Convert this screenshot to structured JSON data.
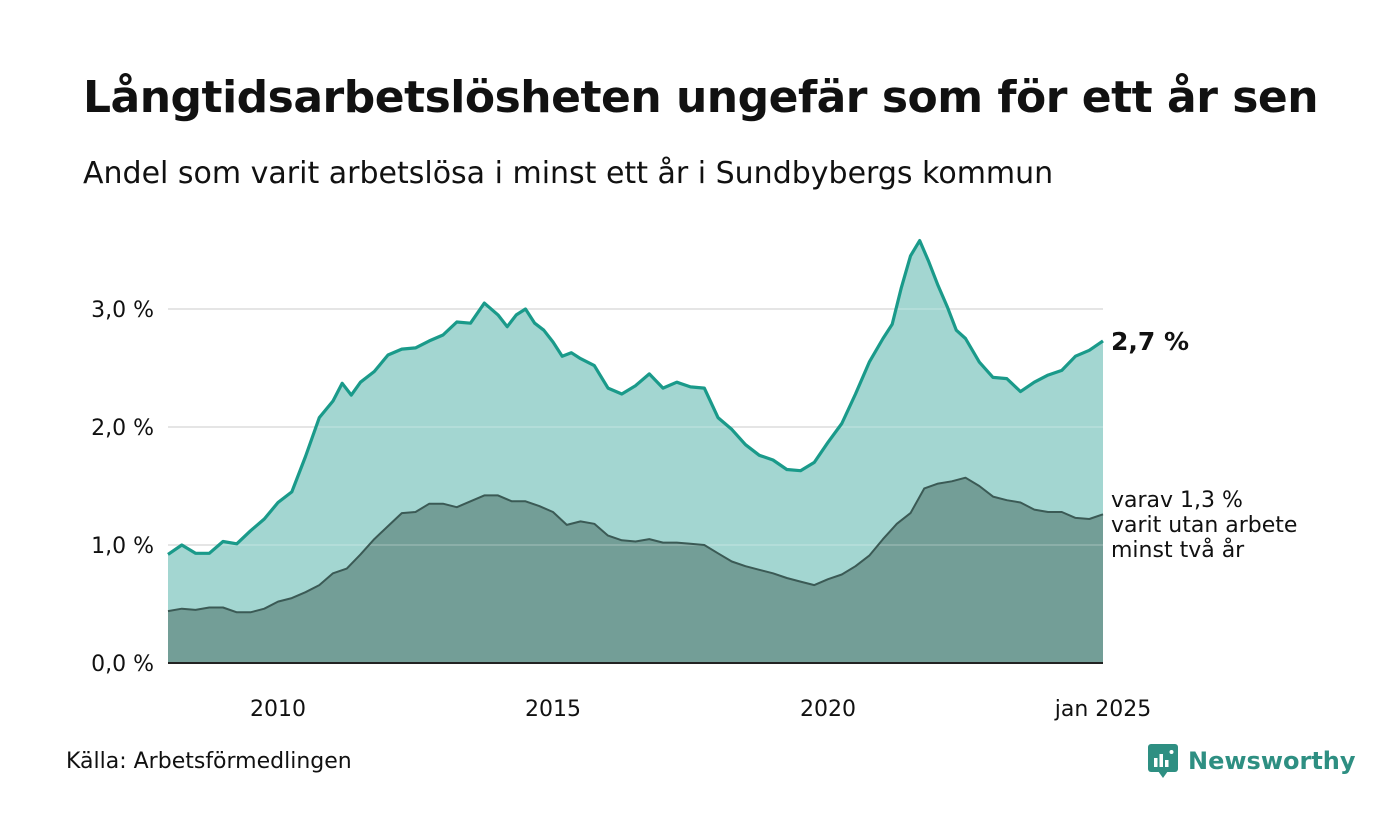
{
  "title": "Långtidsarbetslösheten ungefär som för ett år sen",
  "subtitle": "Andel som varit arbetslösa i minst ett år i Sundbybergs kommun",
  "source": "Källa: Arbetsförmedlingen",
  "brand": "Newsworthy",
  "colors": {
    "total_line": "#1a9a8a",
    "total_fill": "#a3d6d1",
    "long_line": "#3b5a55",
    "long_fill": "#739e97",
    "grid": "#e0e0e0",
    "baseline": "#222222",
    "brand": "#2e8f82"
  },
  "chart_data": {
    "type": "area",
    "x_ticks": [
      "2010",
      "2015",
      "2020",
      "jan 2025"
    ],
    "y_ticks": [
      "0,0 %",
      "1,0 %",
      "2,0 %",
      "3,0 %"
    ],
    "ylim": [
      0,
      3.6
    ],
    "grid": true,
    "annotations": {
      "total_end": "2,7 %",
      "long_end_lines": [
        "varav 1,3 %",
        "varit utan arbete",
        "minst två år"
      ]
    },
    "series": [
      {
        "key": "total",
        "points": [
          [
            "2008-01",
            0.92
          ],
          [
            "2008-04",
            1.0
          ],
          [
            "2008-07",
            0.93
          ],
          [
            "2008-10",
            0.93
          ],
          [
            "2009-01",
            1.03
          ],
          [
            "2009-04",
            1.01
          ],
          [
            "2009-07",
            1.12
          ],
          [
            "2009-10",
            1.22
          ],
          [
            "2010-01",
            1.36
          ],
          [
            "2010-04",
            1.45
          ],
          [
            "2010-07",
            1.75
          ],
          [
            "2010-10",
            2.08
          ],
          [
            "2011-01",
            2.22
          ],
          [
            "2011-03",
            2.37
          ],
          [
            "2011-05",
            2.27
          ],
          [
            "2011-07",
            2.38
          ],
          [
            "2011-10",
            2.47
          ],
          [
            "2012-01",
            2.61
          ],
          [
            "2012-04",
            2.66
          ],
          [
            "2012-07",
            2.67
          ],
          [
            "2012-10",
            2.73
          ],
          [
            "2013-01",
            2.78
          ],
          [
            "2013-04",
            2.89
          ],
          [
            "2013-07",
            2.88
          ],
          [
            "2013-10",
            3.05
          ],
          [
            "2014-01",
            2.95
          ],
          [
            "2014-03",
            2.85
          ],
          [
            "2014-05",
            2.95
          ],
          [
            "2014-07",
            3.0
          ],
          [
            "2014-09",
            2.88
          ],
          [
            "2014-11",
            2.82
          ],
          [
            "2015-01",
            2.72
          ],
          [
            "2015-03",
            2.6
          ],
          [
            "2015-05",
            2.63
          ],
          [
            "2015-07",
            2.58
          ],
          [
            "2015-10",
            2.52
          ],
          [
            "2016-01",
            2.33
          ],
          [
            "2016-04",
            2.28
          ],
          [
            "2016-07",
            2.35
          ],
          [
            "2016-10",
            2.45
          ],
          [
            "2017-01",
            2.33
          ],
          [
            "2017-04",
            2.38
          ],
          [
            "2017-07",
            2.34
          ],
          [
            "2017-10",
            2.33
          ],
          [
            "2018-01",
            2.08
          ],
          [
            "2018-04",
            1.98
          ],
          [
            "2018-07",
            1.85
          ],
          [
            "2018-10",
            1.76
          ],
          [
            "2019-01",
            1.72
          ],
          [
            "2019-04",
            1.64
          ],
          [
            "2019-07",
            1.63
          ],
          [
            "2019-10",
            1.7
          ],
          [
            "2020-01",
            1.87
          ],
          [
            "2020-04",
            2.03
          ],
          [
            "2020-07",
            2.28
          ],
          [
            "2020-10",
            2.55
          ],
          [
            "2021-01",
            2.75
          ],
          [
            "2021-03",
            2.87
          ],
          [
            "2021-05",
            3.18
          ],
          [
            "2021-07",
            3.45
          ],
          [
            "2021-09",
            3.58
          ],
          [
            "2021-11",
            3.4
          ],
          [
            "2022-01",
            3.2
          ],
          [
            "2022-03",
            3.02
          ],
          [
            "2022-05",
            2.82
          ],
          [
            "2022-07",
            2.75
          ],
          [
            "2022-10",
            2.55
          ],
          [
            "2023-01",
            2.42
          ],
          [
            "2023-04",
            2.41
          ],
          [
            "2023-07",
            2.3
          ],
          [
            "2023-10",
            2.38
          ],
          [
            "2024-01",
            2.44
          ],
          [
            "2024-04",
            2.48
          ],
          [
            "2024-07",
            2.6
          ],
          [
            "2024-10",
            2.65
          ],
          [
            "2025-01",
            2.73
          ]
        ]
      },
      {
        "key": "long",
        "points": [
          [
            "2008-01",
            0.44
          ],
          [
            "2008-04",
            0.46
          ],
          [
            "2008-07",
            0.45
          ],
          [
            "2008-10",
            0.47
          ],
          [
            "2009-01",
            0.47
          ],
          [
            "2009-04",
            0.43
          ],
          [
            "2009-07",
            0.43
          ],
          [
            "2009-10",
            0.46
          ],
          [
            "2010-01",
            0.52
          ],
          [
            "2010-04",
            0.55
          ],
          [
            "2010-07",
            0.6
          ],
          [
            "2010-10",
            0.66
          ],
          [
            "2011-01",
            0.76
          ],
          [
            "2011-04",
            0.8
          ],
          [
            "2011-07",
            0.92
          ],
          [
            "2011-10",
            1.05
          ],
          [
            "2012-01",
            1.16
          ],
          [
            "2012-04",
            1.27
          ],
          [
            "2012-07",
            1.28
          ],
          [
            "2012-10",
            1.35
          ],
          [
            "2013-01",
            1.35
          ],
          [
            "2013-04",
            1.32
          ],
          [
            "2013-07",
            1.37
          ],
          [
            "2013-10",
            1.42
          ],
          [
            "2014-01",
            1.42
          ],
          [
            "2014-04",
            1.37
          ],
          [
            "2014-07",
            1.37
          ],
          [
            "2014-10",
            1.33
          ],
          [
            "2015-01",
            1.28
          ],
          [
            "2015-04",
            1.17
          ],
          [
            "2015-07",
            1.2
          ],
          [
            "2015-10",
            1.18
          ],
          [
            "2016-01",
            1.08
          ],
          [
            "2016-04",
            1.04
          ],
          [
            "2016-07",
            1.03
          ],
          [
            "2016-10",
            1.05
          ],
          [
            "2017-01",
            1.02
          ],
          [
            "2017-04",
            1.02
          ],
          [
            "2017-07",
            1.01
          ],
          [
            "2017-10",
            1.0
          ],
          [
            "2018-01",
            0.93
          ],
          [
            "2018-04",
            0.86
          ],
          [
            "2018-07",
            0.82
          ],
          [
            "2018-10",
            0.79
          ],
          [
            "2019-01",
            0.76
          ],
          [
            "2019-04",
            0.72
          ],
          [
            "2019-07",
            0.69
          ],
          [
            "2019-10",
            0.66
          ],
          [
            "2020-01",
            0.71
          ],
          [
            "2020-04",
            0.75
          ],
          [
            "2020-07",
            0.82
          ],
          [
            "2020-10",
            0.91
          ],
          [
            "2021-01",
            1.05
          ],
          [
            "2021-04",
            1.18
          ],
          [
            "2021-07",
            1.27
          ],
          [
            "2021-10",
            1.48
          ],
          [
            "2022-01",
            1.52
          ],
          [
            "2022-04",
            1.54
          ],
          [
            "2022-07",
            1.57
          ],
          [
            "2022-10",
            1.5
          ],
          [
            "2023-01",
            1.41
          ],
          [
            "2023-04",
            1.38
          ],
          [
            "2023-07",
            1.36
          ],
          [
            "2023-10",
            1.3
          ],
          [
            "2024-01",
            1.28
          ],
          [
            "2024-04",
            1.28
          ],
          [
            "2024-07",
            1.23
          ],
          [
            "2024-10",
            1.22
          ],
          [
            "2025-01",
            1.26
          ]
        ]
      }
    ]
  }
}
